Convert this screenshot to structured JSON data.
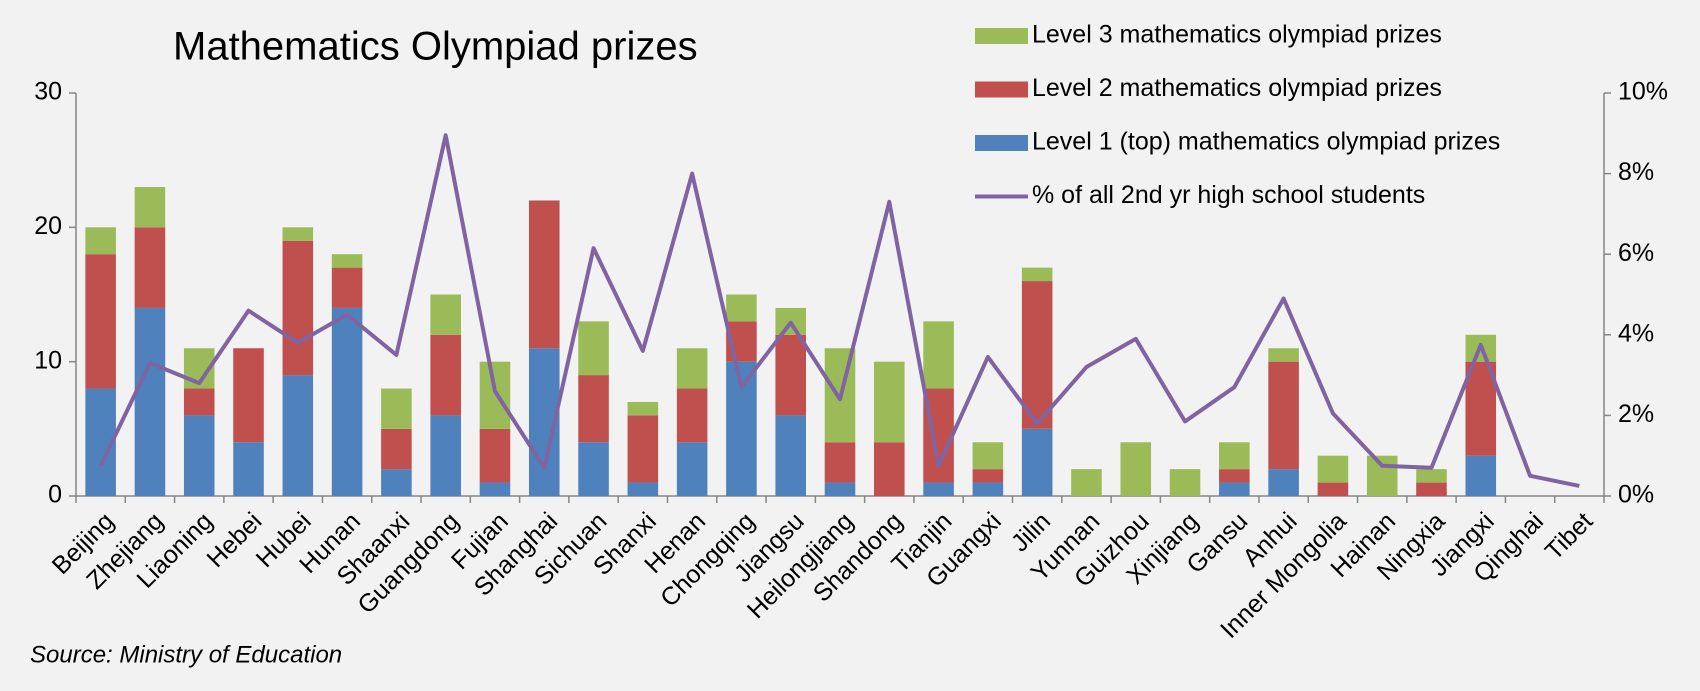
{
  "chart_data": {
    "type": "bar",
    "title": "Mathematics Olympiad prizes",
    "source": "Source: Ministry of Education",
    "categories": [
      "Beijing",
      "Zhejiang",
      "Liaoning",
      "Hebei",
      "Hubei",
      "Hunan",
      "Shaanxi",
      "Guangdong",
      "Fujian",
      "Shanghai",
      "Sichuan",
      "Shanxi",
      "Henan",
      "Chongqing",
      "Jiangsu",
      "Heilongjiang",
      "Shandong",
      "Tianjin",
      "Guangxi",
      "Jilin",
      "Yunnan",
      "Guizhou",
      "Xinjiang",
      "Gansu",
      "Anhui",
      "Inner Mongolia",
      "Hainan",
      "Ningxia",
      "Jiangxi",
      "Qinghai",
      "Tibet"
    ],
    "series": [
      {
        "name": "Level 1 (top) mathematics olympiad prizes",
        "color": "#4f81bd",
        "type": "bar",
        "values": [
          8,
          14,
          6,
          4,
          9,
          14,
          2,
          6,
          1,
          11,
          4,
          1,
          4,
          10,
          6,
          1,
          0,
          1,
          1,
          5,
          0,
          0,
          0,
          1,
          2,
          0,
          0,
          0,
          3,
          0,
          0
        ]
      },
      {
        "name": "Level 2 mathematics olympiad prizes",
        "color": "#c0504d",
        "type": "bar",
        "values": [
          10,
          6,
          2,
          7,
          10,
          3,
          3,
          6,
          4,
          11,
          5,
          5,
          4,
          3,
          6,
          3,
          4,
          7,
          1,
          11,
          0,
          0,
          0,
          1,
          8,
          1,
          0,
          1,
          7,
          0,
          0
        ]
      },
      {
        "name": "Level 3 mathematics olympiad prizes",
        "color": "#9bbb59",
        "type": "bar",
        "values": [
          2,
          3,
          3,
          0,
          1,
          1,
          3,
          3,
          5,
          0,
          4,
          1,
          3,
          2,
          2,
          7,
          6,
          5,
          2,
          1,
          2,
          4,
          2,
          2,
          1,
          2,
          3,
          1,
          2,
          0,
          0
        ]
      },
      {
        "name": "% of all 2nd yr high school students",
        "color": "#8064a2",
        "type": "line",
        "axis": "y2",
        "values": [
          0.75,
          3.3,
          2.8,
          4.6,
          3.8,
          4.5,
          3.5,
          8.95,
          2.6,
          0.7,
          6.15,
          3.6,
          8.0,
          2.7,
          4.3,
          2.4,
          7.3,
          0.75,
          3.45,
          1.8,
          3.2,
          3.9,
          1.85,
          2.7,
          4.9,
          2.05,
          0.75,
          0.7,
          3.75,
          0.5,
          0.25
        ]
      }
    ],
    "legend_order": [
      2,
      1,
      0,
      3
    ],
    "ylim": [
      0,
      30
    ],
    "yticks": [
      0,
      10,
      20,
      30
    ],
    "y2lim": [
      0,
      10
    ],
    "y2ticks": [
      {
        "value": 0,
        "label": "0%"
      },
      {
        "value": 2,
        "label": "2%"
      },
      {
        "value": 4,
        "label": "4%"
      },
      {
        "value": 6,
        "label": "6%"
      },
      {
        "value": 8,
        "label": "8%"
      },
      {
        "value": 10,
        "label": "10%"
      }
    ],
    "grid": false
  }
}
